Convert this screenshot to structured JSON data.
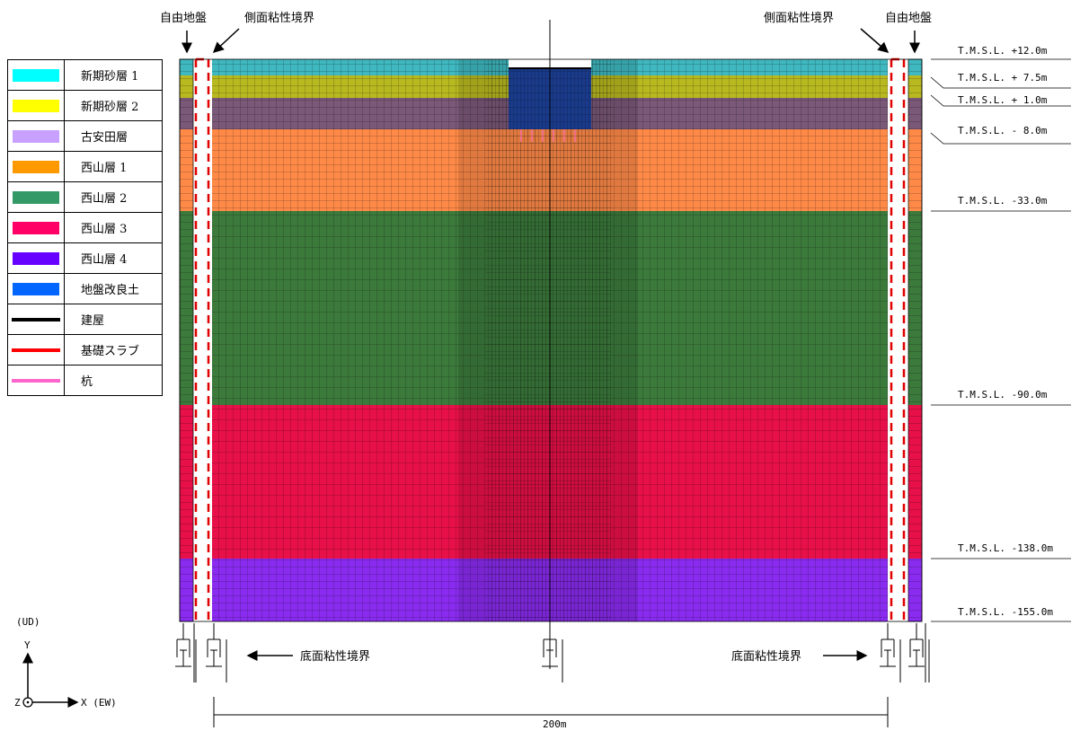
{
  "legend": [
    {
      "label": "新期砂層 1",
      "color": "#00FFFF",
      "kind": "fill"
    },
    {
      "label": "新期砂層 2",
      "color": "#FFFF00",
      "kind": "fill"
    },
    {
      "label": "古安田層",
      "color": "#C8A0FF",
      "kind": "fill"
    },
    {
      "label": "西山層 1",
      "color": "#FF9900",
      "kind": "fill"
    },
    {
      "label": "西山層 2",
      "color": "#339966",
      "kind": "fill"
    },
    {
      "label": "西山層 3",
      "color": "#FF0066",
      "kind": "fill"
    },
    {
      "label": "西山層 4",
      "color": "#6600FF",
      "kind": "fill"
    },
    {
      "label": "地盤改良土",
      "color": "#0066FF",
      "kind": "fill"
    },
    {
      "label": "建屋",
      "color": "#000000",
      "kind": "line"
    },
    {
      "label": "基礎スラブ",
      "color": "#FF0000",
      "kind": "line"
    },
    {
      "label": "杭",
      "color": "#FF66CC",
      "kind": "line"
    }
  ],
  "labels": {
    "free_ground_left": "自由地盤",
    "free_ground_right": "自由地盤",
    "side_boundary_left": "側面粘性境界",
    "side_boundary_right": "側面粘性境界",
    "bottom_boundary_left": "底面粘性境界",
    "bottom_boundary_right": "底面粘性境界",
    "width": "200m"
  },
  "levels": [
    "T.M.S.L. +12.0m",
    "T.M.S.L. + 7.5m",
    "T.M.S.L. + 1.0m",
    "T.M.S.L. - 8.0m",
    "T.M.S.L. -33.0m",
    "T.M.S.L. -90.0m",
    "T.M.S.L. -138.0m",
    "T.M.S.L. -155.0m"
  ],
  "axes": {
    "ud": "(UD)",
    "y": "Y",
    "z": "Z",
    "x": "X (EW)"
  },
  "colors": {
    "sand1": "#3FB8C0",
    "sand2": "#B8B820",
    "yasuda": "#7A5878",
    "nishi1": "#FF8A48",
    "nishi2": "#3C7A3C",
    "nishi3": "#E81048",
    "nishi4": "#8A2CF0",
    "improved": "#1A3A8A",
    "boundary": "#E00000"
  }
}
